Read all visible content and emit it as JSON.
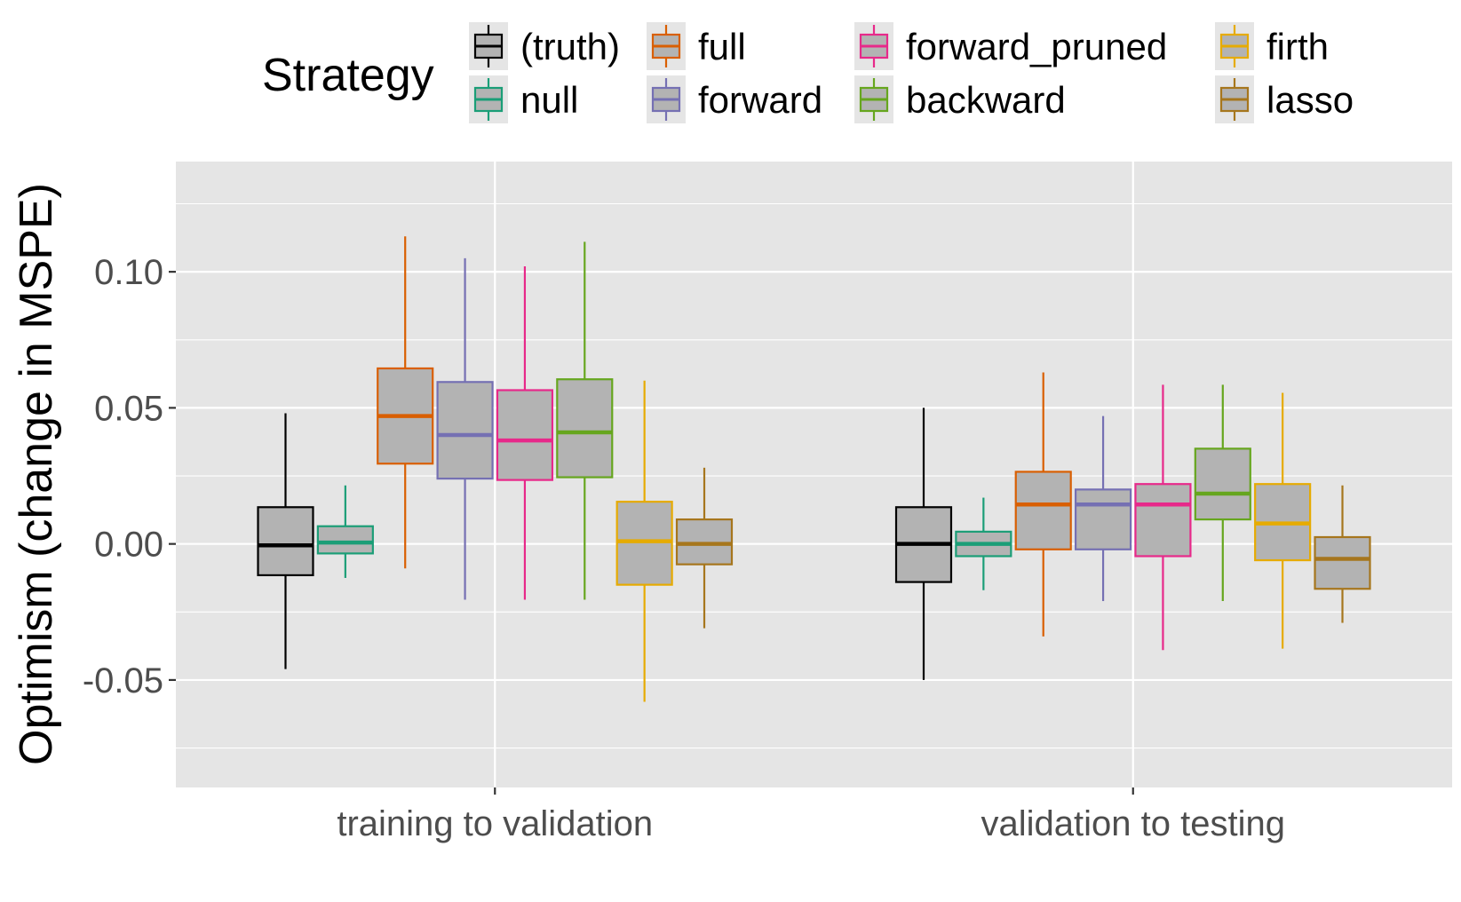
{
  "chart_data": {
    "type": "box",
    "ylabel": "Optimism (change in MSPE)",
    "xlabel": "",
    "ylim": [
      -0.0895,
      0.1405
    ],
    "yticks": [
      -0.05,
      0.0,
      0.05,
      0.1
    ],
    "ytick_labels": [
      "-0.05",
      "0.00",
      "0.05",
      "0.10"
    ],
    "categories": [
      "training to validation",
      "validation to testing"
    ],
    "grid": true,
    "legend": {
      "title": "Strategy",
      "position": "top",
      "entries": [
        "(truth)",
        "full",
        "forward_pruned",
        "firth",
        "null",
        "forward",
        "backward",
        "lasso"
      ]
    },
    "series": [
      {
        "name": "(truth)",
        "color": "#000000",
        "boxes": [
          {
            "min": -0.046,
            "q1": -0.0115,
            "median": -0.0005,
            "q3": 0.0135,
            "max": 0.048
          },
          {
            "min": -0.05,
            "q1": -0.014,
            "median": 0.0,
            "q3": 0.0135,
            "max": 0.05
          }
        ]
      },
      {
        "name": "null",
        "color": "#1B9E77",
        "boxes": [
          {
            "min": -0.0125,
            "q1": -0.0035,
            "median": 0.0005,
            "q3": 0.0065,
            "max": 0.0215
          },
          {
            "min": -0.017,
            "q1": -0.0045,
            "median": 0.0,
            "q3": 0.0045,
            "max": 0.017
          }
        ]
      },
      {
        "name": "full",
        "color": "#D95F02",
        "boxes": [
          {
            "min": -0.009,
            "q1": 0.0295,
            "median": 0.047,
            "q3": 0.0645,
            "max": 0.113
          },
          {
            "min": -0.034,
            "q1": -0.002,
            "median": 0.0145,
            "q3": 0.0265,
            "max": 0.063
          }
        ]
      },
      {
        "name": "forward",
        "color": "#7570B3",
        "boxes": [
          {
            "min": -0.0205,
            "q1": 0.024,
            "median": 0.04,
            "q3": 0.0595,
            "max": 0.105
          },
          {
            "min": -0.021,
            "q1": -0.002,
            "median": 0.0145,
            "q3": 0.02,
            "max": 0.047
          }
        ]
      },
      {
        "name": "forward_pruned",
        "color": "#E7298A",
        "boxes": [
          {
            "min": -0.0205,
            "q1": 0.0235,
            "median": 0.038,
            "q3": 0.0565,
            "max": 0.102
          },
          {
            "min": -0.039,
            "q1": -0.0045,
            "median": 0.0145,
            "q3": 0.022,
            "max": 0.0585
          }
        ]
      },
      {
        "name": "backward",
        "color": "#66A61E",
        "boxes": [
          {
            "min": -0.0205,
            "q1": 0.0245,
            "median": 0.041,
            "q3": 0.0605,
            "max": 0.111
          },
          {
            "min": -0.021,
            "q1": 0.009,
            "median": 0.0185,
            "q3": 0.035,
            "max": 0.0585
          }
        ]
      },
      {
        "name": "firth",
        "color": "#E6AB02",
        "boxes": [
          {
            "min": -0.058,
            "q1": -0.015,
            "median": 0.001,
            "q3": 0.0155,
            "max": 0.06
          },
          {
            "min": -0.0385,
            "q1": -0.006,
            "median": 0.0075,
            "q3": 0.022,
            "max": 0.0555
          }
        ]
      },
      {
        "name": "lasso",
        "color": "#A6761D",
        "boxes": [
          {
            "min": -0.031,
            "q1": -0.0075,
            "median": 0.0,
            "q3": 0.009,
            "max": 0.028
          },
          {
            "min": -0.029,
            "q1": -0.0165,
            "median": -0.0055,
            "q3": 0.0025,
            "max": 0.0215
          }
        ]
      }
    ]
  }
}
